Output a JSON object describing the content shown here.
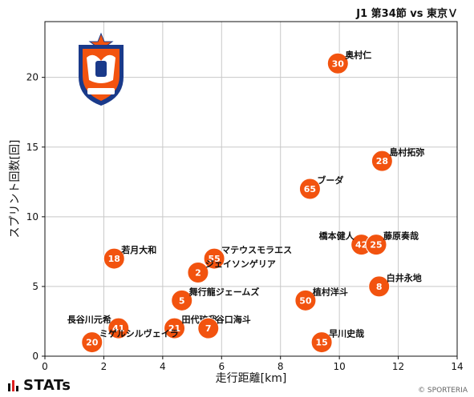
{
  "header": {
    "match": "J1 第34節 vs 東京Ｖ"
  },
  "footer": {
    "brand": "STATs",
    "credit": "© SPORTERIA"
  },
  "chart_data": {
    "type": "scatter",
    "xlabel": "走行距離[km]",
    "ylabel": "スプリント回数[回]",
    "xlim": [
      0,
      14
    ],
    "ylim": [
      0,
      24
    ],
    "xticks": [
      "0",
      "2",
      "4",
      "6",
      "8",
      "10",
      "12",
      "14"
    ],
    "yticks": [
      "0",
      "5",
      "10",
      "15",
      "20"
    ],
    "grid": true,
    "marker_color": "#F2530F",
    "points": [
      {
        "number": "30",
        "name": "奥村仁",
        "x": 9.95,
        "y": 21
      },
      {
        "number": "28",
        "name": "島村拓弥",
        "x": 11.45,
        "y": 14
      },
      {
        "number": "65",
        "name": "ブーダ",
        "x": 9.0,
        "y": 12
      },
      {
        "number": "42",
        "name": "橋本健人",
        "x": 10.75,
        "y": 8
      },
      {
        "number": "25",
        "name": "藤原奏哉",
        "x": 11.25,
        "y": 8
      },
      {
        "number": "18",
        "name": "若月大和",
        "x": 2.35,
        "y": 7
      },
      {
        "number": "55",
        "name": "マテウスモラエス",
        "x": 5.75,
        "y": 7
      },
      {
        "number": "2",
        "name": "ジェイソンゲリア",
        "x": 5.2,
        "y": 6
      },
      {
        "number": "8",
        "name": "白井永地",
        "x": 11.35,
        "y": 5
      },
      {
        "number": "5",
        "name": "舞行龍ジェームズ",
        "x": 4.65,
        "y": 4
      },
      {
        "number": "50",
        "name": "植村洋斗",
        "x": 8.85,
        "y": 4
      },
      {
        "number": "41",
        "name": "長谷川元希",
        "x": 2.5,
        "y": 2
      },
      {
        "number": "21",
        "name": "田代琉我",
        "x": 4.4,
        "y": 2
      },
      {
        "number": "7",
        "name": "谷口海斗",
        "x": 5.55,
        "y": 2
      },
      {
        "number": "20",
        "name": "ミゲルシルヴェイラ",
        "x": 1.6,
        "y": 1
      },
      {
        "number": "15",
        "name": "早川史哉",
        "x": 9.4,
        "y": 1
      }
    ]
  }
}
